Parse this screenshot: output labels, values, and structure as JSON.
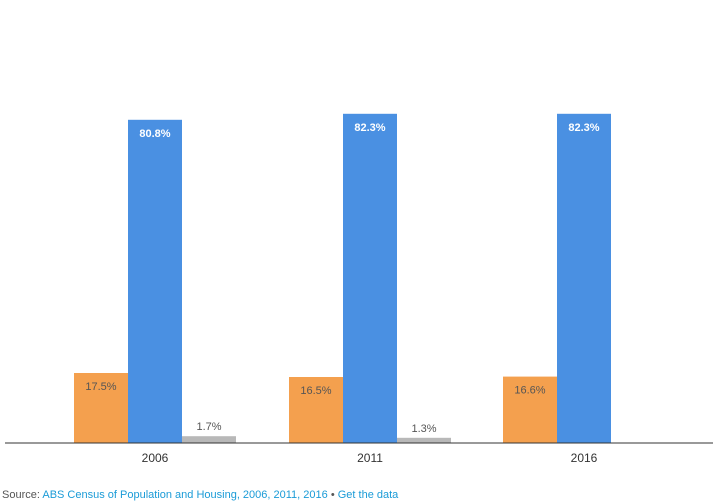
{
  "chart_data": {
    "type": "bar",
    "title": "",
    "xlabel": "",
    "ylabel": "",
    "ylim": [
      0,
      100
    ],
    "grid": false,
    "legend": "none",
    "categories": [
      "2006",
      "2011",
      "2016"
    ],
    "series": [
      {
        "name": "Series 1",
        "color": "#f4a04e",
        "values": [
          17.5,
          16.5,
          16.6
        ],
        "labels": [
          "17.5%",
          "16.5%",
          "16.6%"
        ]
      },
      {
        "name": "Series 2",
        "color": "#4a90e2",
        "values": [
          80.8,
          82.3,
          82.3
        ],
        "labels": [
          "80.8%",
          "82.3%",
          "82.3%"
        ]
      },
      {
        "name": "Series 3",
        "color": "#b8b8b8",
        "values": [
          1.7,
          1.3,
          null
        ],
        "labels": [
          "1.7%",
          "1.3%",
          null
        ]
      }
    ]
  },
  "footer": {
    "source_prefix": "Source: ",
    "source_link": "ABS Census of Population and Housing, 2006, 2011, 2016",
    "separator": " • ",
    "get_data_link": "Get the data"
  },
  "colors": {
    "axis": "#333333",
    "label_dark": "#555555",
    "label_light": "#ffffff",
    "link": "#1a9bd7"
  }
}
